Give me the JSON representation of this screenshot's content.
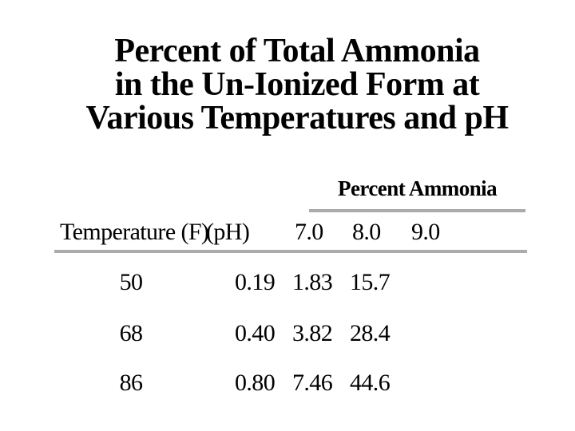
{
  "slide": {
    "title_lines": [
      "Percent of Total Ammonia",
      "in the Un-Ionized Form at",
      "Various Temperatures and pH"
    ]
  },
  "table": {
    "group_header": "Percent Ammonia",
    "row_header": {
      "temperature_label": "Temperature (F)",
      "ph_label": "(pH)",
      "ph_values": [
        "7.0",
        "8.0",
        "9.0"
      ]
    },
    "rows": [
      {
        "temp": "50",
        "ph7": "0.19",
        "ph8": "1.83",
        "ph9": "15.7"
      },
      {
        "temp": "68",
        "ph7": "0.40",
        "ph8": "3.82",
        "ph9": "28.4"
      },
      {
        "temp": "86",
        "ph7": "0.80",
        "ph8": "7.46",
        "ph9": "44.6"
      }
    ]
  },
  "chart_data": {
    "type": "table",
    "title": "Percent of Total Ammonia in the Un-Ionized Form at Various Temperatures and pH",
    "columns": [
      "Temperature (F)",
      "pH 7.0",
      "pH 8.0",
      "pH 9.0"
    ],
    "rows": [
      [
        50,
        0.19,
        1.83,
        15.7
      ],
      [
        68,
        0.4,
        3.82,
        28.4
      ],
      [
        86,
        0.8,
        7.46,
        44.6
      ]
    ],
    "column_group_label": "Percent Ammonia"
  },
  "colors": {
    "background": "#ffffff",
    "text": "#000000",
    "rule_gray": "#ababab"
  }
}
